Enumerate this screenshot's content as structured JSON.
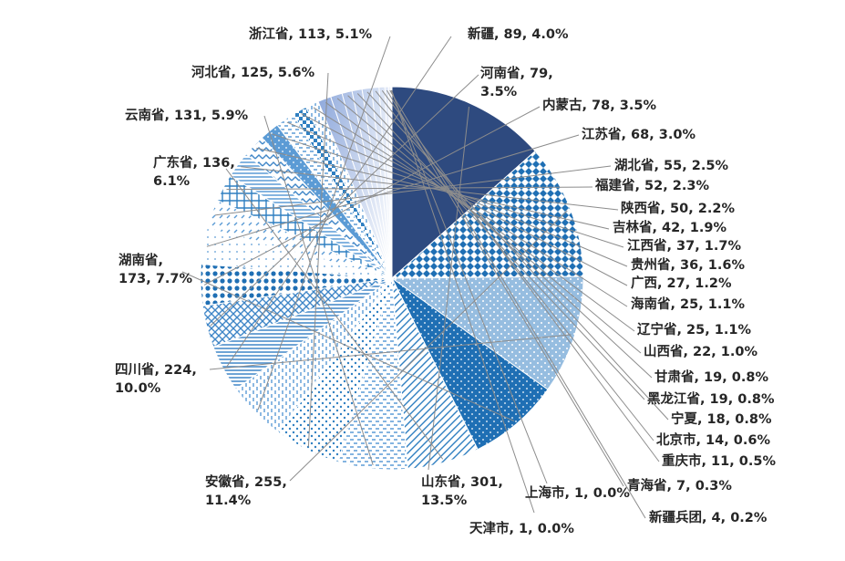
{
  "chart_data": {
    "type": "pie",
    "title": "",
    "slices": [
      {
        "name": "山东省",
        "value": 301,
        "percent": "13.5%",
        "color": "#2e4a7f",
        "pattern": "solid"
      },
      {
        "name": "安徽省",
        "value": 255,
        "percent": "11.4%",
        "color": "#1f6fb4",
        "pattern": "diamonds"
      },
      {
        "name": "四川省",
        "value": 224,
        "percent": "10.0%",
        "color": "#3f86c7",
        "pattern": "dense-dots"
      },
      {
        "name": "湖南省",
        "value": 173,
        "percent": "7.7%",
        "color": "#1f6fb4",
        "pattern": "dots"
      },
      {
        "name": "广东省",
        "value": 136,
        "percent": "6.1%",
        "color": "#2f7fc1",
        "pattern": "diag-stripes"
      },
      {
        "name": "云南省",
        "value": 131,
        "percent": "5.9%",
        "color": "#5b9bd5",
        "pattern": "dashes"
      },
      {
        "name": "河北省",
        "value": 125,
        "percent": "5.6%",
        "color": "#2f7fc1",
        "pattern": "small-dots"
      },
      {
        "name": "浙江省",
        "value": 113,
        "percent": "5.1%",
        "color": "#5b9bd5",
        "pattern": "vert-dashes"
      },
      {
        "name": "新疆",
        "value": 89,
        "percent": "4.0%",
        "color": "#3f86c7",
        "pattern": "horiz-stripes"
      },
      {
        "name": "河南省",
        "value": 79,
        "percent": "3.5%",
        "color": "#3f86c7",
        "pattern": "crosshatch"
      },
      {
        "name": "内蒙古",
        "value": 78,
        "percent": "3.5%",
        "color": "#1f6fb4",
        "pattern": "big-dots"
      },
      {
        "name": "江苏省",
        "value": 68,
        "percent": "3.0%",
        "color": "#5b9bd5",
        "pattern": "sparse-dots"
      },
      {
        "name": "湖北省",
        "value": 55,
        "percent": "2.5%",
        "color": "#5b9bd5",
        "pattern": "diag-dashes"
      },
      {
        "name": "福建省",
        "value": 52,
        "percent": "2.3%",
        "color": "#2f7fc1",
        "pattern": "grid"
      },
      {
        "name": "陕西省",
        "value": 50,
        "percent": "2.2%",
        "color": "#5b9bd5",
        "pattern": "horiz-stripes"
      },
      {
        "name": "吉林省",
        "value": 42,
        "percent": "1.9%",
        "color": "#3f86c7",
        "pattern": "zigzag"
      },
      {
        "name": "江西省",
        "value": 37,
        "percent": "1.7%",
        "color": "#5b9bd5",
        "pattern": "dots"
      },
      {
        "name": "贵州省",
        "value": 36,
        "percent": "1.6%",
        "color": "#5b9bd5",
        "pattern": "dashes"
      },
      {
        "name": "广西",
        "value": 27,
        "percent": "1.2%",
        "color": "#2f7fc1",
        "pattern": "checker"
      },
      {
        "name": "海南省",
        "value": 25,
        "percent": "1.1%",
        "color": "#5b9bd5",
        "pattern": "vert-dashes"
      },
      {
        "name": "辽宁省",
        "value": 25,
        "percent": "1.1%",
        "color": "#8fa9dc",
        "pattern": "gradient"
      },
      {
        "name": "山西省",
        "value": 22,
        "percent": "1.0%",
        "color": "#9db4e0",
        "pattern": "gradient"
      },
      {
        "name": "甘肃省",
        "value": 19,
        "percent": "0.8%",
        "color": "#a9bde4",
        "pattern": "gradient"
      },
      {
        "name": "黑龙江省",
        "value": 19,
        "percent": "0.8%",
        "color": "#b4c6e8",
        "pattern": "gradient"
      },
      {
        "name": "宁夏",
        "value": 18,
        "percent": "0.8%",
        "color": "#bfcfec",
        "pattern": "gradient"
      },
      {
        "name": "北京市",
        "value": 14,
        "percent": "0.6%",
        "color": "#c9d7ef",
        "pattern": "gradient"
      },
      {
        "name": "重庆市",
        "value": 11,
        "percent": "0.5%",
        "color": "#d3def2",
        "pattern": "gradient"
      },
      {
        "name": "青海省",
        "value": 7,
        "percent": "0.3%",
        "color": "#dde5f5",
        "pattern": "gradient"
      },
      {
        "name": "新疆兵团",
        "value": 4,
        "percent": "0.2%",
        "color": "#e6ecf8",
        "pattern": "gradient"
      },
      {
        "name": "上海市",
        "value": 1,
        "percent": "0.0%",
        "color": "#eef2fa",
        "pattern": "gradient"
      },
      {
        "name": "天津市",
        "value": 1,
        "percent": "0.0%",
        "color": "#f4f7fc",
        "pattern": "gradient"
      }
    ],
    "labels": [
      {
        "name": "山东省",
        "lines": [
          "山东省, 301,",
          "13.5%"
        ]
      },
      {
        "name": "安徽省",
        "lines": [
          "安徽省, 255,",
          "11.4%"
        ]
      },
      {
        "name": "四川省",
        "lines": [
          "四川省, 224,",
          "10.0%"
        ]
      },
      {
        "name": "湖南省",
        "lines": [
          "湖南省,",
          "173, 7.7%"
        ]
      },
      {
        "name": "广东省",
        "lines": [
          "广东省, 136,",
          "6.1%"
        ]
      },
      {
        "name": "云南省",
        "lines": [
          "云南省, 131, 5.9%"
        ]
      },
      {
        "name": "河北省",
        "lines": [
          "河北省, 125, 5.6%"
        ]
      },
      {
        "name": "浙江省",
        "lines": [
          "浙江省, 113, 5.1%"
        ]
      },
      {
        "name": "新疆",
        "lines": [
          "新疆, 89, 4.0%"
        ]
      },
      {
        "name": "河南省",
        "lines": [
          "河南省, 79,",
          "3.5%"
        ]
      },
      {
        "name": "内蒙古",
        "lines": [
          "内蒙古, 78, 3.5%"
        ]
      },
      {
        "name": "江苏省",
        "lines": [
          "江苏省, 68, 3.0%"
        ]
      },
      {
        "name": "湖北省",
        "lines": [
          "湖北省, 55, 2.5%"
        ]
      },
      {
        "name": "福建省",
        "lines": [
          "福建省, 52, 2.3%"
        ]
      },
      {
        "name": "陕西省",
        "lines": [
          "陕西省, 50, 2.2%"
        ]
      },
      {
        "name": "吉林省",
        "lines": [
          "吉林省, 42, 1.9%"
        ]
      },
      {
        "name": "江西省",
        "lines": [
          "江西省, 37, 1.7%"
        ]
      },
      {
        "name": "贵州省",
        "lines": [
          "贵州省, 36, 1.6%"
        ]
      },
      {
        "name": "广西",
        "lines": [
          "广西, 27, 1.2%"
        ]
      },
      {
        "name": "海南省",
        "lines": [
          "海南省, 25, 1.1%"
        ]
      },
      {
        "name": "辽宁省",
        "lines": [
          "辽宁省, 25, 1.1%"
        ]
      },
      {
        "name": "山西省",
        "lines": [
          "山西省, 22, 1.0%"
        ]
      },
      {
        "name": "甘肃省",
        "lines": [
          "甘肃省, 19, 0.8%"
        ]
      },
      {
        "name": "黑龙江省",
        "lines": [
          "黑龙江省, 19, 0.8%"
        ]
      },
      {
        "name": "宁夏",
        "lines": [
          "宁夏, 18, 0.8%"
        ]
      },
      {
        "name": "北京市",
        "lines": [
          "北京市, 14, 0.6%"
        ]
      },
      {
        "name": "重庆市",
        "lines": [
          "重庆市, 11, 0.5%"
        ]
      },
      {
        "name": "青海省",
        "lines": [
          "青海省, 7, 0.3%"
        ]
      },
      {
        "name": "新疆兵团",
        "lines": [
          "新疆兵团, 4, 0.2%"
        ]
      },
      {
        "name": "上海市",
        "lines": [
          "上海市, 1, 0.0%"
        ]
      },
      {
        "name": "天津市",
        "lines": [
          "天津市, 1, 0.0%"
        ]
      }
    ]
  }
}
